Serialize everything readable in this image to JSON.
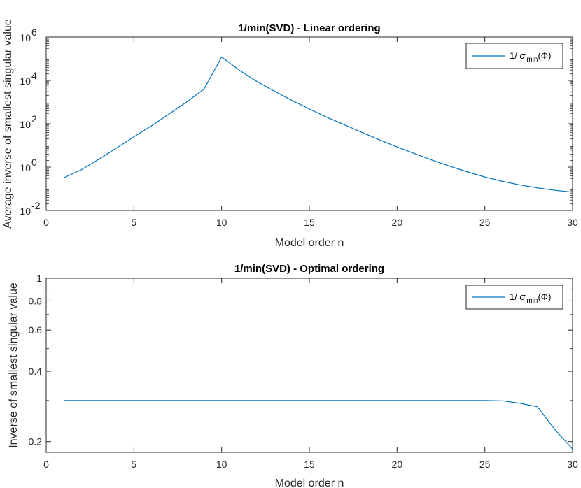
{
  "chart_data": [
    {
      "type": "line",
      "title": "1/min(SVD) - Linear ordering",
      "xlabel": "Model order n",
      "ylabel": "Average inverse of smallest singular value",
      "xlim": [
        0,
        30
      ],
      "ylim": [
        0.01,
        1000000
      ],
      "yscale": "log",
      "xticks": [
        0,
        5,
        10,
        15,
        20,
        25,
        30
      ],
      "xtick_labels": [
        "0",
        "5",
        "10",
        "15",
        "20",
        "25",
        "30"
      ],
      "yticks": [
        0.01,
        1,
        100,
        10000,
        1000000
      ],
      "ytick_labels": [
        {
          "base": "10",
          "exp": "-2"
        },
        {
          "base": "10",
          "exp": "0"
        },
        {
          "base": "10",
          "exp": "2"
        },
        {
          "base": "10",
          "exp": "4"
        },
        {
          "base": "10",
          "exp": "6"
        }
      ],
      "legend": {
        "position": "top-right",
        "prefix": "1/ ",
        "sigma": "σ",
        "sub": "min",
        "arg": "(Φ)"
      },
      "series": [
        {
          "color": "#0072bd",
          "x": [
            1,
            2,
            3,
            4,
            5,
            6,
            7,
            8,
            9,
            10,
            11,
            12,
            13,
            14,
            15,
            16,
            17,
            18,
            19,
            20,
            21,
            22,
            23,
            24,
            25,
            26,
            27,
            28,
            29,
            30
          ],
          "y": [
            0.32,
            0.75,
            2.3,
            7.5,
            25,
            80,
            280,
            1000,
            4000,
            120000,
            30000,
            9000,
            3200,
            1200,
            480,
            200,
            90,
            40,
            18,
            8.5,
            4.2,
            2.1,
            1.1,
            0.6,
            0.35,
            0.22,
            0.15,
            0.11,
            0.085,
            0.07
          ]
        }
      ]
    },
    {
      "type": "line",
      "title": "1/min(SVD) - Optimal ordering",
      "xlabel": "Model order n",
      "ylabel": "Inverse of smallest singular value",
      "xlim": [
        0,
        30
      ],
      "ylim": [
        0.18,
        1
      ],
      "yscale": "log",
      "xticks": [
        0,
        5,
        10,
        15,
        20,
        25,
        30
      ],
      "xtick_labels": [
        "0",
        "5",
        "10",
        "15",
        "20",
        "25",
        "30"
      ],
      "yticks": [
        0.2,
        0.4,
        0.6,
        0.8,
        1
      ],
      "ytick_labels": [
        "0.2",
        "0.4",
        "0.6",
        "0.8",
        "1"
      ],
      "legend": {
        "position": "top-right",
        "prefix": "1/ ",
        "sigma": "σ",
        "sub": "min",
        "arg": "(Φ)"
      },
      "series": [
        {
          "color": "#0072bd",
          "x": [
            1,
            2,
            3,
            4,
            5,
            6,
            7,
            8,
            9,
            10,
            11,
            12,
            13,
            14,
            15,
            16,
            17,
            18,
            19,
            20,
            21,
            22,
            23,
            24,
            25,
            26,
            27,
            28,
            29,
            30
          ],
          "y": [
            0.3,
            0.3,
            0.3,
            0.3,
            0.3,
            0.3,
            0.3,
            0.3,
            0.3,
            0.3,
            0.3,
            0.3,
            0.3,
            0.3,
            0.3,
            0.3,
            0.3,
            0.3,
            0.3,
            0.3,
            0.3,
            0.3,
            0.3,
            0.3,
            0.3,
            0.299,
            0.292,
            0.282,
            0.225,
            0.186
          ]
        }
      ]
    }
  ]
}
